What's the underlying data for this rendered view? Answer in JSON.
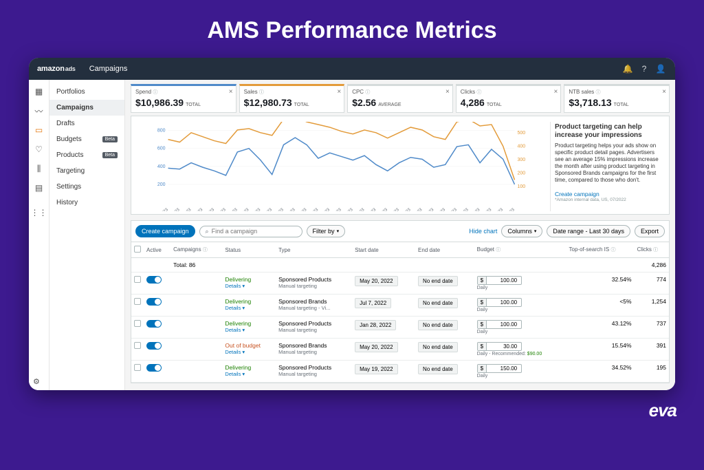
{
  "outer": {
    "title": "AMS Performance Metrics",
    "footer_brand": "eva"
  },
  "topbar": {
    "brand_primary": "amazon",
    "brand_secondary": "ads",
    "crumb": "Campaigns"
  },
  "rail_icons": [
    "dashboard",
    "trend",
    "wallet",
    "shield",
    "bars",
    "layers",
    "grid"
  ],
  "sidebar": {
    "items": [
      {
        "label": "Portfolios",
        "beta": false
      },
      {
        "label": "Campaigns",
        "beta": false,
        "active": true
      },
      {
        "label": "Drafts",
        "beta": false
      },
      {
        "label": "Budgets",
        "beta": true
      },
      {
        "label": "Products",
        "beta": true
      },
      {
        "label": "Targeting",
        "beta": false
      },
      {
        "label": "Settings",
        "beta": false
      },
      {
        "label": "History",
        "beta": false
      }
    ],
    "beta_label": "Beta"
  },
  "metrics": [
    {
      "label": "Spend",
      "value": "$10,986.39",
      "unit": "TOTAL",
      "color": "#4f8ac9"
    },
    {
      "label": "Sales",
      "value": "$12,980.73",
      "unit": "TOTAL",
      "color": "#e39b3a"
    },
    {
      "label": "CPC",
      "value": "$2.56",
      "unit": "AVERAGE",
      "color": "#d5dbdb"
    },
    {
      "label": "Clicks",
      "value": "4,286",
      "unit": "TOTAL",
      "color": "#d5dbdb"
    },
    {
      "label": "NTB sales",
      "value": "$3,718.13",
      "unit": "TOTAL",
      "color": "#d5dbdb"
    }
  ],
  "chart": {
    "y_left": {
      "ticks": [
        200,
        400,
        600,
        800
      ],
      "lim": [
        100,
        850
      ],
      "color": "#4f8ac9"
    },
    "y_right": {
      "ticks": [
        100,
        200,
        300,
        400,
        500
      ],
      "lim": [
        50,
        550
      ],
      "color": "#e39b3a"
    },
    "x_labels": [
      "2/8/2023",
      "2/9/2023",
      "2/10/2023",
      "2/11/2023",
      "2/12/2023",
      "2/13/2023",
      "2/14/2023",
      "2/15/2023",
      "2/16/2023",
      "2/17/2023",
      "2/18/2023",
      "2/19/2023",
      "2/20/2023",
      "2/21/2023",
      "2/22/2023",
      "2/23/2023",
      "2/24/2023",
      "2/25/2023",
      "2/26/2023",
      "2/27/2023",
      "2/28/2023",
      "3/1/2023",
      "3/2/2023",
      "3/3/2023",
      "3/4/2023",
      "3/5/2023",
      "3/6/2023",
      "3/7/2023",
      "3/8/2023",
      "3/9/2023",
      "3/10/2023"
    ],
    "series_spend": [
      380,
      370,
      440,
      390,
      350,
      300,
      560,
      600,
      470,
      310,
      640,
      720,
      640,
      490,
      550,
      510,
      470,
      520,
      420,
      350,
      440,
      500,
      480,
      390,
      420,
      620,
      640,
      440,
      590,
      480,
      200
    ],
    "series_sales": [
      450,
      430,
      500,
      470,
      440,
      420,
      520,
      530,
      500,
      480,
      600,
      620,
      580,
      560,
      540,
      510,
      490,
      520,
      500,
      460,
      500,
      540,
      520,
      470,
      450,
      580,
      600,
      550,
      560,
      400,
      150
    ],
    "line_width": 1.5,
    "background": "#ffffff",
    "grid_color": "#f0f0f0",
    "label_fontsize": 6,
    "height": 130
  },
  "promo": {
    "title": "Product targeting can help increase your impressions",
    "body": "Product targeting helps your ads show on specific product detail pages. Advertisers see an average 15% impressions increase the month after using product targeting in Sponsored Brands campaigns for the first time, compared to those who don't.",
    "link": "Create campaign",
    "footnote": "*Amazon internal data, US, 07/2022"
  },
  "toolbar": {
    "create": "Create campaign",
    "search_placeholder": "Find a campaign",
    "filter": "Filter by",
    "hide_chart": "Hide chart",
    "columns": "Columns",
    "date_range": "Date range - Last 30 days",
    "export": "Export"
  },
  "table": {
    "headers": [
      "",
      "Active",
      "Campaigns",
      "Status",
      "Type",
      "Start date",
      "End date",
      "Budget",
      "Top-of-search IS",
      "Clicks"
    ],
    "total_label": "Total: 86",
    "total_clicks": "4,286",
    "no_end": "No end date",
    "currency": "$",
    "daily": "Daily",
    "details": "Details",
    "recommended_prefix": "Daily - Recommended: ",
    "rows": [
      {
        "status": "Delivering",
        "status_class": "delivering",
        "type": "Sponsored Products",
        "subtype": "Manual targeting",
        "start": "May 20, 2022",
        "budget": "100.00",
        "tos": "32.54%",
        "clicks": "774"
      },
      {
        "status": "Delivering",
        "status_class": "delivering",
        "type": "Sponsored Brands",
        "subtype": "Manual targeting - Vi...",
        "start": "Jul 7, 2022",
        "budget": "100.00",
        "tos": "<5%",
        "clicks": "1,254"
      },
      {
        "status": "Delivering",
        "status_class": "delivering",
        "type": "Sponsored Products",
        "subtype": "Manual targeting",
        "start": "Jan 28, 2022",
        "budget": "100.00",
        "tos": "43.12%",
        "clicks": "737"
      },
      {
        "status": "Out of budget",
        "status_class": "out",
        "type": "Sponsored Brands",
        "subtype": "Manual targeting",
        "start": "May 20, 2022",
        "budget": "30.00",
        "recommended": "$90.00",
        "tos": "15.54%",
        "clicks": "391"
      },
      {
        "status": "Delivering",
        "status_class": "delivering",
        "type": "Sponsored Products",
        "subtype": "Manual targeting",
        "start": "May 19, 2022",
        "budget": "150.00",
        "tos": "34.52%",
        "clicks": "195"
      }
    ]
  }
}
